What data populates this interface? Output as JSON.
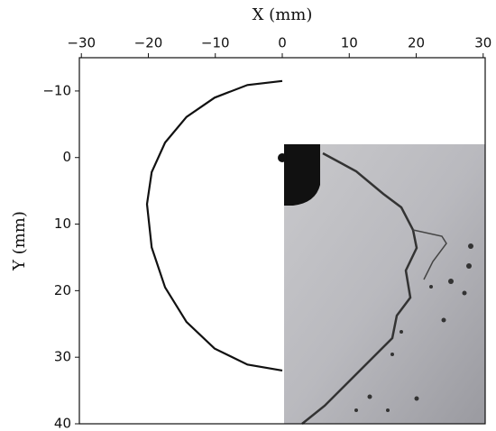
{
  "chart_data": {
    "type": "line",
    "xlabel": "X (mm)",
    "ylabel": "Y (mm)",
    "xlim": [
      -30.3,
      30.3
    ],
    "ylim": [
      -15,
      40
    ],
    "y_inverted": true,
    "x_axis_position": "top",
    "xticks": [
      {
        "value": -30,
        "label": "−30"
      },
      {
        "value": -20,
        "label": "−20"
      },
      {
        "value": -10,
        "label": "−10"
      },
      0,
      10,
      20,
      30
    ],
    "yticks": [
      {
        "value": -10,
        "label": "−10"
      },
      0,
      10,
      20,
      30,
      40
    ],
    "series": [
      {
        "color": "#111111",
        "x": [
          0,
          -5.2,
          -10.1,
          -14.3,
          -17.5,
          -19.5,
          -20.2,
          -19.5,
          -17.5,
          -14.3,
          -10.1,
          -5.2,
          0
        ],
        "values": [
          -11.5,
          -10.9,
          -9,
          -6.1,
          -2.25,
          2.2,
          7,
          13.5,
          19.5,
          24.7,
          28.7,
          31.1,
          32
        ]
      }
    ]
  }
}
